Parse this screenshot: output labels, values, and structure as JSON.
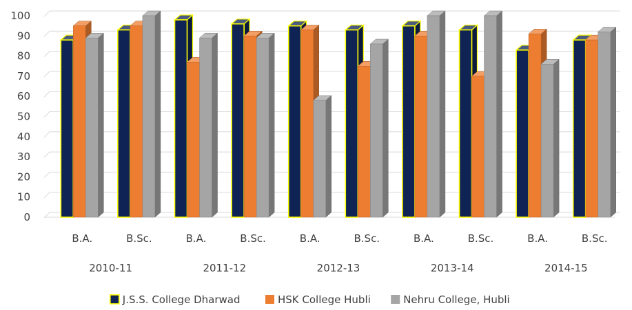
{
  "chart_data": {
    "type": "bar",
    "style": "3d-clustered-column",
    "groups": [
      {
        "label": "2010-11",
        "categories": [
          "B.A.",
          "B.Sc."
        ]
      },
      {
        "label": "2011-12",
        "categories": [
          "B.A.",
          "B.Sc."
        ]
      },
      {
        "label": "2012-13",
        "categories": [
          "B.A.",
          "B.Sc."
        ]
      },
      {
        "label": "2013-14",
        "categories": [
          "B.A.",
          "B.Sc."
        ]
      },
      {
        "label": "2014-15",
        "categories": [
          "B.A.",
          "B.Sc."
        ]
      }
    ],
    "categories": [
      "B.A.",
      "B.Sc.",
      "B.A.",
      "B.Sc.",
      "B.A.",
      "B.Sc.",
      "B.A.",
      "B.Sc.",
      "B.A.",
      "B.Sc."
    ],
    "series": [
      {
        "name": "J.S.S. College Dharwad",
        "color": "#0f2454",
        "edge": "#ffff00",
        "values": [
          88,
          93,
          98,
          96,
          95,
          93,
          95,
          93,
          83,
          88
        ]
      },
      {
        "name": "HSK College Hubli",
        "color": "#ed7d31",
        "values": [
          95,
          95,
          77,
          90,
          93,
          75,
          90,
          70,
          91,
          88
        ]
      },
      {
        "name": "Nehru College, Hubli",
        "color": "#a5a5a5",
        "values": [
          89,
          100,
          89,
          89,
          58,
          86,
          100,
          100,
          76,
          92
        ]
      }
    ],
    "yticks": [
      0,
      10,
      20,
      30,
      40,
      50,
      60,
      70,
      80,
      90,
      100
    ],
    "ylim": [
      0,
      100
    ],
    "grid": true,
    "legend": "bottom",
    "title": "",
    "xlabel": "",
    "ylabel": ""
  }
}
